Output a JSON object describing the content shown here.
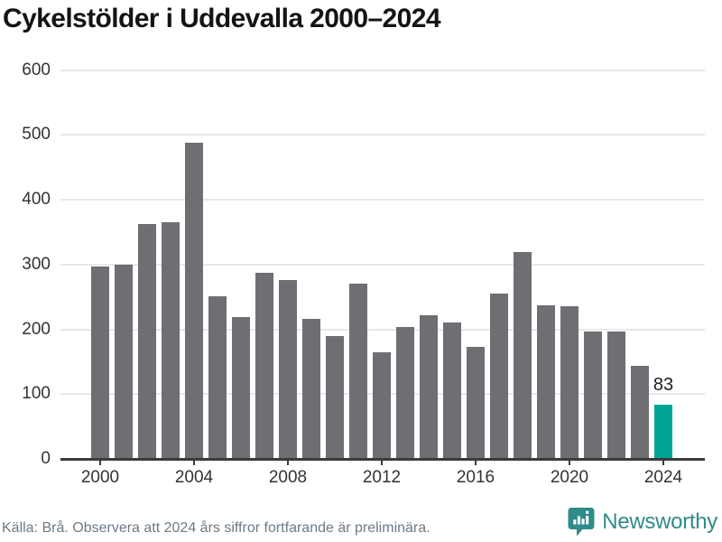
{
  "title": "Cykelstölder i Uddevalla 2000–2024",
  "footer": {
    "source_note": "Källa: Brå. Observera att 2024 års siffror fortfarande är preliminära."
  },
  "branding": {
    "wordmark": "Newsworthy",
    "logo_icon": "newsworthy-speech-bubble-bar-chart-icon"
  },
  "colors": {
    "bar": "#6e6e73",
    "highlight": "#00a596",
    "gridline": "#e8e8e8",
    "axis": "#3b3b3b",
    "tick_label": "#333338",
    "title_text": "#141414",
    "footer_text": "#6e7a84",
    "brand_teal": "#2f8c8a"
  },
  "chart_data": {
    "type": "bar",
    "title": "Cykelstölder i Uddevalla 2000–2024",
    "xlabel": "",
    "ylabel": "",
    "categories": [
      2000,
      2001,
      2002,
      2003,
      2004,
      2005,
      2006,
      2007,
      2008,
      2009,
      2010,
      2011,
      2012,
      2013,
      2014,
      2015,
      2016,
      2017,
      2018,
      2019,
      2020,
      2021,
      2022,
      2023,
      2024
    ],
    "values": [
      297,
      299,
      362,
      365,
      488,
      251,
      219,
      287,
      276,
      216,
      190,
      271,
      165,
      204,
      221,
      211,
      173,
      255,
      319,
      237,
      236,
      196,
      197,
      144,
      83
    ],
    "highlight_index": 24,
    "annotation": {
      "index": 24,
      "text": "83"
    },
    "y_ticks": [
      0,
      100,
      200,
      300,
      400,
      500,
      600
    ],
    "x_tick_labels": [
      "2000",
      "2004",
      "2008",
      "2012",
      "2016",
      "2020",
      "2024"
    ],
    "ylim": [
      0,
      600
    ],
    "grid": "horizontal",
    "legend": "none"
  }
}
